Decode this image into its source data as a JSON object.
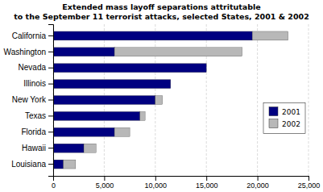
{
  "chart_data": {
    "type": "bar",
    "orientation": "horizontal",
    "stacked": true,
    "title": "Extended mass layoff separations attritutable\nto the September 11 terrorist attacks, selected States, 2001 & 2002",
    "categories": [
      "Louisiana",
      "Hawaii",
      "Florida",
      "Texas",
      "New York",
      "Illinois",
      "Nevada",
      "Washington",
      "California"
    ],
    "series": [
      {
        "name": "2001",
        "color": "#000080",
        "values": [
          1000,
          3000,
          6000,
          8500,
          10000,
          11500,
          15000,
          6000,
          19500
        ]
      },
      {
        "name": "2002",
        "color": "#B8B8B8",
        "values": [
          1200,
          1200,
          1500,
          500,
          700,
          0,
          0,
          12500,
          3500
        ]
      }
    ],
    "xlim": [
      0,
      25000
    ],
    "xticks": [
      0,
      {
        "value": 5000,
        "label": "5,000"
      },
      {
        "value": 10000,
        "label": "10,000"
      },
      {
        "value": 15000,
        "label": "15,000"
      },
      {
        "value": 20000,
        "label": "20,000"
      },
      {
        "value": 25000,
        "label": "25,000"
      }
    ],
    "grid": true,
    "legend": "right"
  }
}
